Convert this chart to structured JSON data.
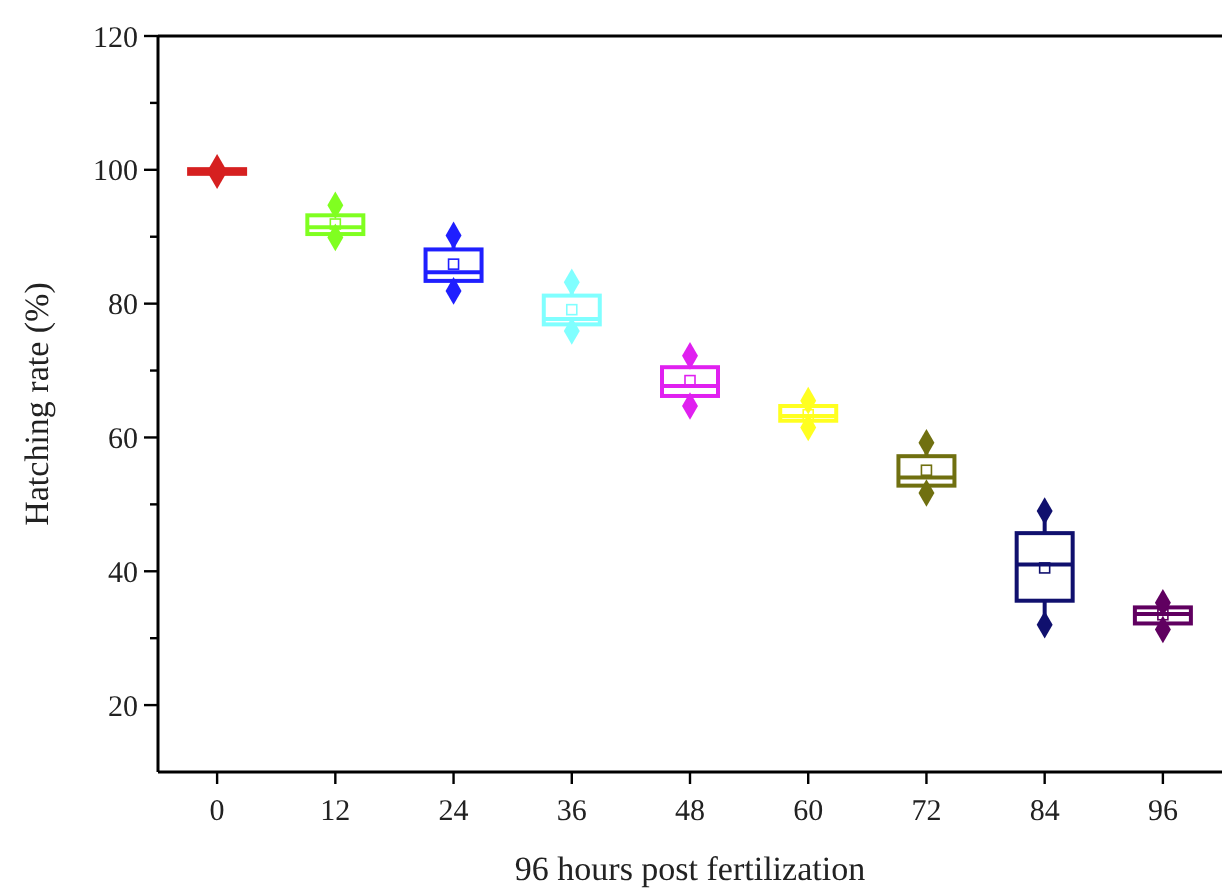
{
  "chart_data": {
    "type": "box",
    "xlabel": "96 hours post fertilization",
    "ylabel": "Hatching rate (%)",
    "categories": [
      "0",
      "12",
      "24",
      "36",
      "48",
      "60",
      "72",
      "84",
      "96"
    ],
    "ylim": [
      10,
      120
    ],
    "yticks": [
      20,
      {
        "value": 30,
        "label": null
      },
      40,
      {
        "value": 50,
        "label": null
      },
      60,
      {
        "value": 70,
        "label": null
      },
      80,
      {
        "value": 90,
        "label": null
      },
      100,
      {
        "value": 110,
        "label": null
      },
      120
    ],
    "marker": "diamond",
    "colors": [
      "#d62020",
      "#80ff20",
      "#1f1fff",
      "#80ffff",
      "#e020f0",
      "#ffff20",
      "#707010",
      "#10106e",
      "#600060"
    ],
    "boxes": [
      {
        "low": 99.2,
        "q1": 99.4,
        "median": 99.7,
        "q3": 100.1,
        "high": 100.3,
        "mean": 99.7,
        "outliers": [
          99.2,
          100.3
        ]
      },
      {
        "low": 89.9,
        "q1": 90.4,
        "median": 91.4,
        "q3": 93.2,
        "high": 94.7,
        "mean": 91.9,
        "outliers": [
          89.9,
          94.7
        ]
      },
      {
        "low": 81.9,
        "q1": 83.4,
        "median": 84.7,
        "q3": 88.1,
        "high": 90.2,
        "mean": 85.9,
        "outliers": [
          81.9,
          90.2
        ]
      },
      {
        "low": 75.9,
        "q1": 76.9,
        "median": 77.7,
        "q3": 81.2,
        "high": 83.2,
        "mean": 79.1,
        "outliers": [
          75.9,
          83.2
        ]
      },
      {
        "low": 64.7,
        "q1": 66.2,
        "median": 67.7,
        "q3": 70.5,
        "high": 72.2,
        "mean": 68.5,
        "outliers": [
          64.7,
          72.2
        ]
      },
      {
        "low": 61.5,
        "q1": 62.5,
        "median": 63.2,
        "q3": 64.7,
        "high": 65.5,
        "mean": 63.4,
        "outliers": [
          61.5,
          65.5
        ]
      },
      {
        "low": 51.7,
        "q1": 52.8,
        "median": 54.0,
        "q3": 57.2,
        "high": 59.2,
        "mean": 55.1,
        "outliers": [
          51.7,
          59.2
        ]
      },
      {
        "low": 32.0,
        "q1": 35.6,
        "median": 41.0,
        "q3": 45.7,
        "high": 49.0,
        "mean": 40.5,
        "outliers": [
          32.0,
          49.0
        ]
      },
      {
        "low": 31.3,
        "q1": 32.2,
        "median": 33.6,
        "q3": 34.6,
        "high": 35.3,
        "mean": 33.5,
        "outliers": [
          31.3,
          35.3
        ]
      }
    ]
  }
}
